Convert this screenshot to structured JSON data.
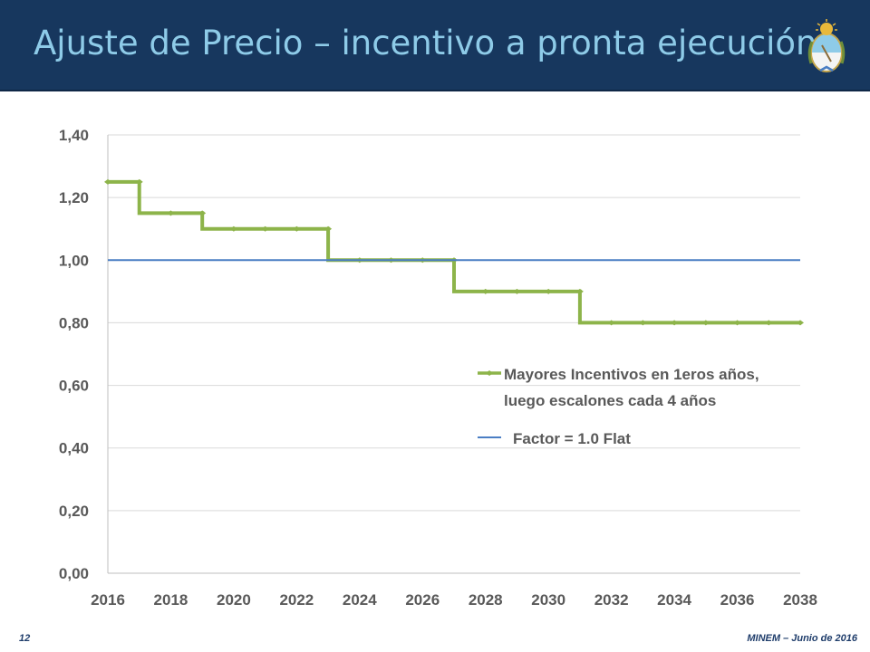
{
  "header": {
    "title": "Ajuste de Precio – incentivo a pronta ejecución"
  },
  "footer": {
    "page_number": "12",
    "source": "MINEM – Junio de 2016"
  },
  "colors": {
    "title_bar": "#17375e",
    "title_text": "#8ecbe8",
    "series_incentive": "#8db44a",
    "series_flat": "#4a7ec4",
    "grid": "#d9d9d9"
  },
  "chart_data": {
    "type": "line",
    "title": "",
    "xlabel": "",
    "ylabel": "",
    "xlim": [
      2016,
      2038
    ],
    "ylim": [
      0,
      1.4
    ],
    "grid": true,
    "legend_position": "right",
    "x_ticks": [
      "2016",
      "2018",
      "2020",
      "2022",
      "2024",
      "2026",
      "2028",
      "2030",
      "2032",
      "2034",
      "2036",
      "2038"
    ],
    "y_ticks": [
      "0,00",
      "0,20",
      "0,40",
      "0,60",
      "0,80",
      "1,00",
      "1,20",
      "1,40"
    ],
    "series": [
      {
        "name": "Mayores Incentivos en 1eros años, luego  escalones cada 4 años",
        "legend_lines": [
          "Mayores Incentivos en 1eros años,",
          "luego  escalones cada 4 años"
        ],
        "step": true,
        "x": [
          2016,
          2017,
          2018,
          2019,
          2020,
          2021,
          2022,
          2023,
          2024,
          2025,
          2026,
          2027,
          2028,
          2029,
          2030,
          2031,
          2032,
          2033,
          2034,
          2035,
          2036,
          2037,
          2038
        ],
        "values": [
          1.25,
          1.15,
          1.15,
          1.1,
          1.1,
          1.1,
          1.1,
          1.0,
          1.0,
          1.0,
          1.0,
          0.9,
          0.9,
          0.9,
          0.9,
          0.8,
          0.8,
          0.8,
          0.8,
          0.8,
          0.8,
          0.8,
          0.8
        ]
      },
      {
        "name": "Factor = 1.0 Flat",
        "legend_lines": [
          "Factor = 1.0 Flat"
        ],
        "step": false,
        "x": [
          2016,
          2038
        ],
        "values": [
          1.0,
          1.0
        ]
      }
    ]
  }
}
